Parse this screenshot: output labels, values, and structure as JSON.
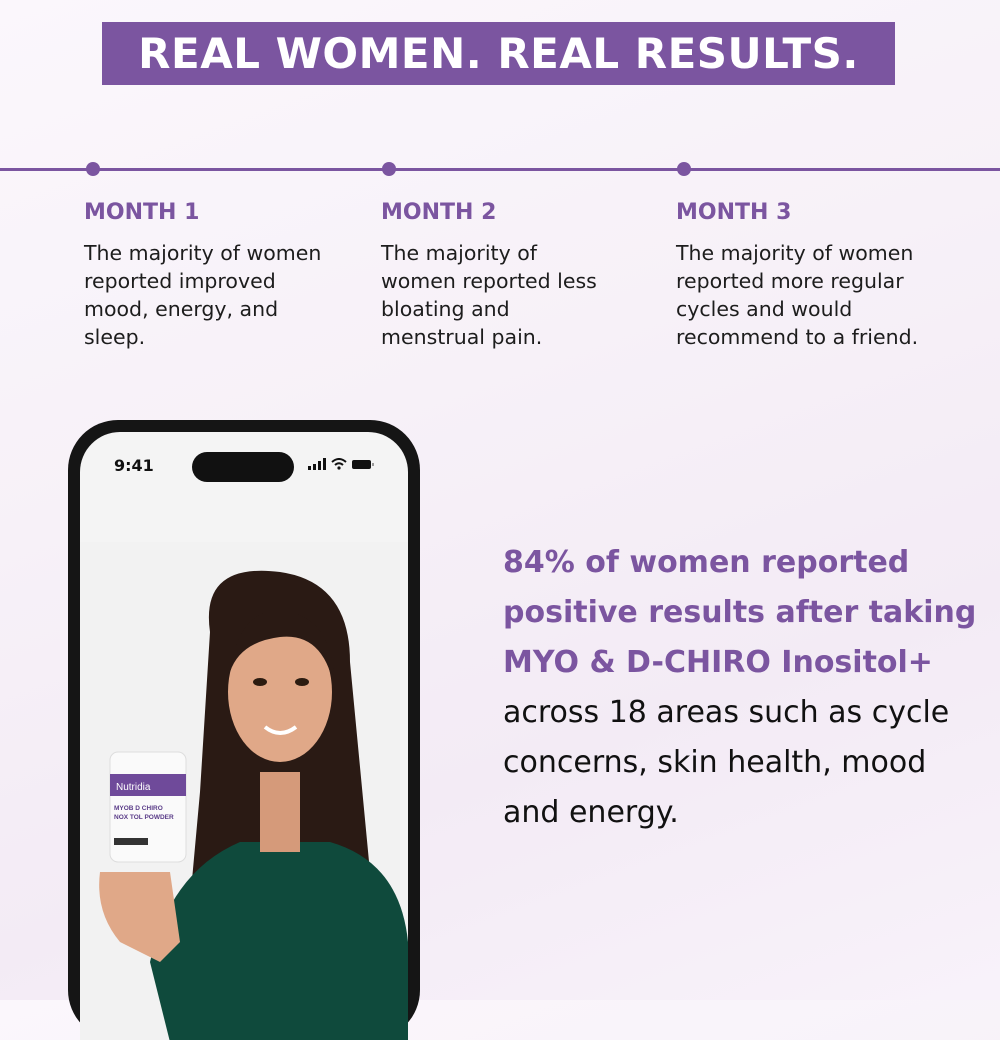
{
  "banner": {
    "title": "REAL WOMEN. REAL RESULTS."
  },
  "timeline": [
    {
      "label": "MONTH 1",
      "text": "The majority of women reported improved mood, energy, and sleep."
    },
    {
      "label": "MONTH 2",
      "text": "The majority of women reported less bloating and menstrual pain."
    },
    {
      "label": "MONTH 3",
      "text": "The majority of women reported more regular cycles and would recommend to a friend."
    }
  ],
  "phone": {
    "time": "9:41",
    "product": {
      "brand": "Nutridia",
      "name": "MYOB D CHIRO NOX TOL POWDER"
    }
  },
  "stat": {
    "highlight": "84% of women reported positive results after taking MYO & D-CHIRO Inositol+",
    "rest": " across 18 areas such as cycle concerns, skin health, mood and energy."
  },
  "colors": {
    "accent": "#7b55a0"
  }
}
